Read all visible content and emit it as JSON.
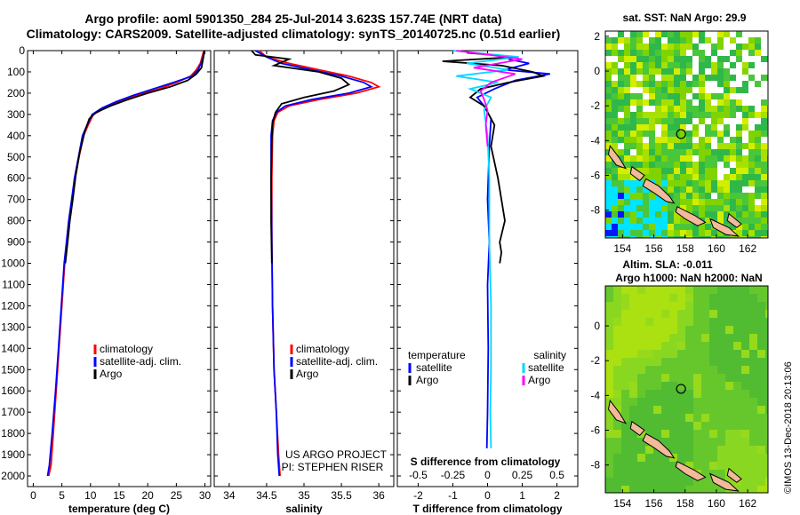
{
  "titles": {
    "line1": "Argo profile: aoml 5901350_284 25-Jul-2014 3.623S 157.74E (NRT data)",
    "line2": "Climatology: CARS2009. Satellite-adjusted climatology: synTS_20140725.nc (0.51d earlier)"
  },
  "colors": {
    "climatology": "#ff0000",
    "satellite": "#0000ff",
    "argo": "#000000",
    "sal_satellite": "#00d8ff",
    "sal_argo": "#ff00ff"
  },
  "depth_axis": {
    "ylim": [
      0,
      2050
    ],
    "ticks": [
      0,
      100,
      200,
      300,
      400,
      500,
      600,
      700,
      800,
      900,
      1000,
      1100,
      1200,
      1300,
      1400,
      1500,
      1600,
      1700,
      1800,
      1900,
      2000
    ]
  },
  "chart_data": [
    {
      "type": "line",
      "panel": "temperature",
      "xlabel": "temperature (deg C)",
      "xlim": [
        -1,
        31
      ],
      "xticks": [
        0,
        5,
        10,
        15,
        20,
        25,
        30
      ],
      "legend": [
        "climatology",
        "satellite-adj. clim.",
        "Argo"
      ],
      "series": [
        {
          "name": "climatology",
          "color_key": "climatology",
          "x": [
            29.8,
            29.5,
            29.2,
            28.5,
            27.5,
            25,
            22,
            18,
            15,
            12.5,
            10.5,
            9.6,
            8.8,
            8,
            7.3,
            6.8,
            6.3,
            5.9,
            5.5,
            5,
            4.5,
            4,
            3.5,
            3.1,
            2.7
          ],
          "y": [
            0,
            30,
            60,
            90,
            120,
            150,
            180,
            210,
            240,
            270,
            300,
            350,
            400,
            500,
            600,
            700,
            800,
            900,
            1000,
            1200,
            1400,
            1600,
            1800,
            1950,
            2000
          ]
        },
        {
          "name": "satellite-adj. clim.",
          "color_key": "satellite",
          "x": [
            29.9,
            29.7,
            29.3,
            28.8,
            27.8,
            24.5,
            21,
            17.5,
            14.5,
            12,
            10.3,
            9.4,
            8.6,
            7.9,
            7.2,
            6.7,
            6.2,
            5.8,
            5.4,
            4.9,
            4.4,
            3.9,
            3.3,
            2.8,
            2.5
          ],
          "y": [
            0,
            30,
            60,
            90,
            120,
            150,
            180,
            210,
            240,
            270,
            300,
            350,
            400,
            500,
            600,
            700,
            800,
            900,
            1000,
            1200,
            1400,
            1600,
            1800,
            1950,
            2000
          ]
        },
        {
          "name": "Argo",
          "color_key": "argo",
          "x": [
            29.9,
            29.8,
            29.6,
            29.4,
            28.5,
            27,
            24,
            20,
            16.5,
            13.5,
            11,
            9.8,
            9,
            8.1,
            7.4,
            6.9,
            6.4,
            6,
            5.6
          ],
          "y": [
            0,
            20,
            50,
            80,
            110,
            140,
            170,
            200,
            230,
            260,
            290,
            320,
            380,
            480,
            590,
            700,
            800,
            900,
            1000
          ]
        }
      ]
    },
    {
      "type": "line",
      "panel": "salinity",
      "xlabel": "salinity",
      "xlim": [
        33.8,
        36.2
      ],
      "xticks": [
        34,
        34.5,
        35,
        35.5,
        36
      ],
      "legend": [
        "climatology",
        "satellite-adj. clim.",
        "Argo"
      ],
      "footnote": [
        "US ARGO PROJECT",
        "PI: STEPHEN RISER"
      ],
      "series": [
        {
          "name": "climatology",
          "color_key": "climatology",
          "x": [
            34.4,
            34.5,
            34.8,
            35.2,
            35.6,
            35.9,
            36.0,
            35.7,
            35.2,
            34.8,
            34.65,
            34.6,
            34.58,
            34.57,
            34.57,
            34.58,
            34.6,
            34.63,
            34.66,
            34.68
          ],
          "y": [
            0,
            30,
            60,
            90,
            120,
            150,
            170,
            200,
            230,
            260,
            290,
            330,
            400,
            600,
            900,
            1200,
            1500,
            1700,
            1900,
            2000
          ]
        },
        {
          "name": "satellite-adj. clim.",
          "color_key": "satellite",
          "x": [
            34.35,
            34.5,
            34.7,
            35.1,
            35.5,
            35.8,
            35.9,
            35.6,
            35.1,
            34.75,
            34.63,
            34.58,
            34.56,
            34.56,
            34.57,
            34.58,
            34.6,
            34.63,
            34.65,
            34.67
          ],
          "y": [
            0,
            30,
            60,
            90,
            120,
            150,
            170,
            200,
            230,
            260,
            290,
            330,
            400,
            600,
            900,
            1200,
            1500,
            1700,
            1900,
            2000
          ]
        },
        {
          "name": "Argo",
          "color_key": "argo",
          "x": [
            34.3,
            34.35,
            34.8,
            34.6,
            35.2,
            35.5,
            35.6,
            35.4,
            35.0,
            34.7,
            34.62,
            34.58,
            34.57,
            34.56,
            34.56,
            34.57
          ],
          "y": [
            0,
            20,
            40,
            70,
            100,
            130,
            160,
            190,
            220,
            250,
            290,
            340,
            420,
            600,
            800,
            1000
          ]
        }
      ]
    },
    {
      "type": "line",
      "panel": "difference",
      "xlabel": "T difference from climatology",
      "xlabel2": "S difference from climatology",
      "xlim": [
        -2.6,
        2.6
      ],
      "xticks": [
        -2,
        -1,
        0,
        1,
        2
      ],
      "s_ticks": [
        "-0.5",
        "-0.25",
        "0",
        "0.25",
        "0.5"
      ],
      "legend_left_title": "temperature",
      "legend_right_title": "salinity",
      "legend_left": [
        "satellite",
        "Argo"
      ],
      "legend_right": [
        "satellite",
        "Argo"
      ],
      "series": [
        {
          "name": "satellite",
          "color_key": "satellite",
          "x": [
            0.6,
            1.2,
            0.5,
            1.8,
            0.8,
            0.2,
            -0.3,
            -0.1,
            0.1,
            0.05,
            0,
            0.05,
            0,
            0.02,
            0,
            -0.02
          ],
          "y": [
            40,
            60,
            90,
            110,
            140,
            180,
            220,
            260,
            320,
            450,
            700,
            900,
            1100,
            1400,
            1700,
            1870
          ]
        },
        {
          "name": "Argo",
          "color_key": "argo",
          "x": [
            -0.6,
            0.8,
            -1.3,
            0.4,
            1.3,
            1.6,
            0.6,
            -0.2,
            -0.5,
            -0.1,
            0.2,
            0.1,
            0.3,
            0.5,
            0.35,
            0.4,
            0.35
          ],
          "y": [
            10,
            30,
            50,
            70,
            100,
            120,
            150,
            180,
            220,
            260,
            350,
            450,
            600,
            800,
            900,
            950,
            1000
          ]
        },
        {
          "name": "satellite",
          "color_key": "sal_satellite",
          "x": [
            -1.0,
            0.9,
            -0.6,
            0.6,
            -0.9,
            0.3,
            -0.5,
            0.1,
            -0.1,
            0,
            0.05,
            0.05,
            0.1,
            0.1,
            0.08,
            0.1
          ],
          "y": [
            0,
            30,
            60,
            90,
            120,
            150,
            180,
            220,
            280,
            400,
            600,
            900,
            1200,
            1500,
            1700,
            1870
          ]
        },
        {
          "name": "Argo",
          "color_key": "sal_argo",
          "x": [
            -0.9,
            1.0,
            -0.4,
            0.8,
            0.1,
            -0.2,
            -0.1,
            0,
            -0.05,
            0
          ],
          "y": [
            0,
            40,
            80,
            110,
            150,
            190,
            230,
            280,
            350,
            450
          ]
        }
      ]
    },
    {
      "type": "heatmap",
      "panel": "sst",
      "title": "sat. SST: NaN Argo: 29.9",
      "xlim": [
        152.9,
        163.3
      ],
      "ylim": [
        -9.6,
        2.3
      ],
      "xticks": [
        154,
        156,
        158,
        160,
        162
      ],
      "yticks": [
        2,
        0,
        -2,
        -4,
        -6,
        -8
      ],
      "marker": {
        "x": 157.74,
        "y": -3.62
      }
    },
    {
      "type": "heatmap",
      "panel": "sla",
      "title": "Altim. SLA: -0.011",
      "title2": "Argo h1000: NaN h2000: NaN",
      "xlim": [
        152.9,
        163.3
      ],
      "ylim": [
        -9.6,
        2.3
      ],
      "xticks": [
        154,
        156,
        158,
        160,
        162
      ],
      "yticks": [
        0,
        -2,
        -4,
        -6,
        -8
      ],
      "marker": {
        "x": 157.74,
        "y": -3.62
      }
    }
  ],
  "credit": "©IMOS 13-Dec-2018 20:13:06"
}
